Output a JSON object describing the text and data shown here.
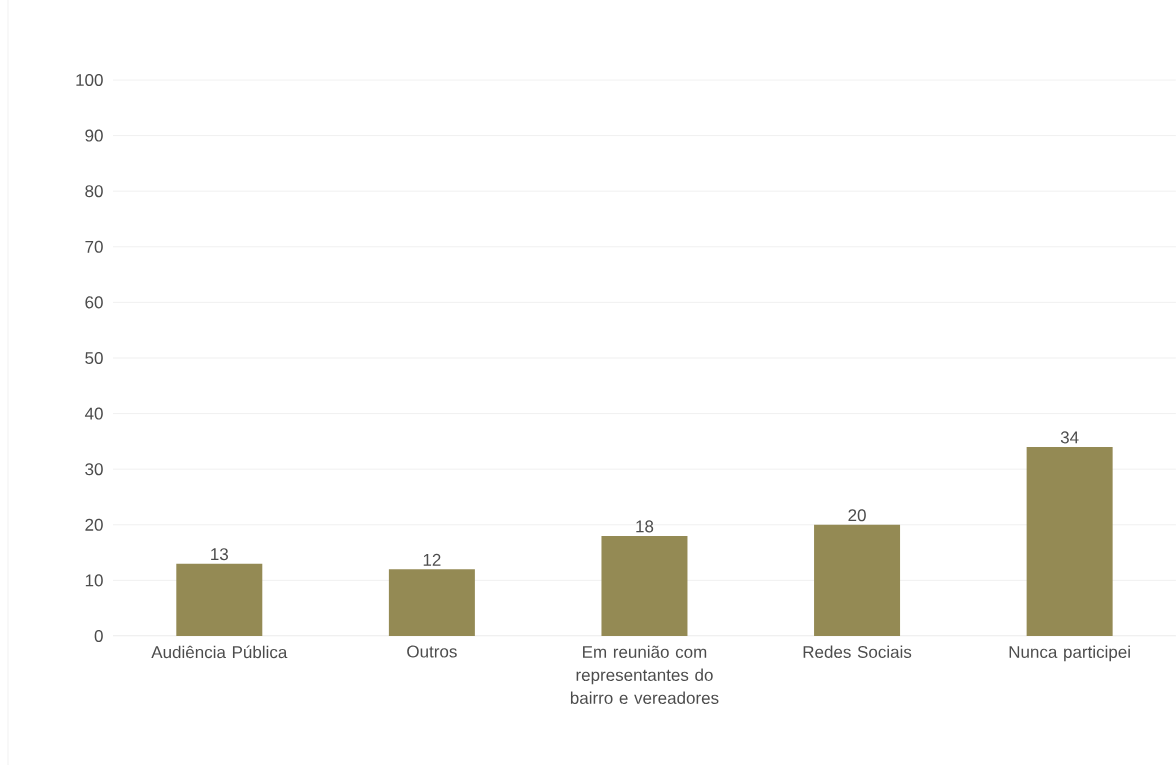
{
  "chart_data": {
    "type": "bar",
    "categories": [
      "Audiência Pública",
      "Outros",
      "Em reunião com representantes do bairro e vereadores",
      "Redes Sociais",
      "Nunca participei"
    ],
    "values": [
      13,
      12,
      18,
      20,
      34
    ],
    "color": "#948a54",
    "ylim": [
      0,
      100
    ],
    "yticks": [
      0,
      10,
      20,
      30,
      40,
      50,
      60,
      70,
      80,
      90,
      100
    ],
    "grid": "y",
    "data_labels": true
  }
}
